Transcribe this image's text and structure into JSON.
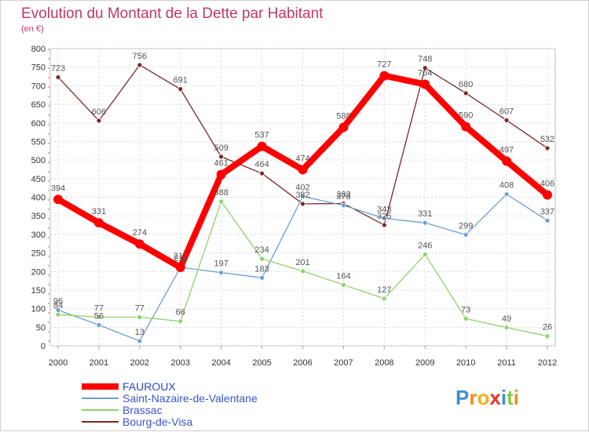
{
  "chart_data": {
    "type": "line",
    "title": "Evolution du Montant de la Dette par Habitant",
    "subtitle": "(en €)",
    "xlabel": "",
    "ylabel": "",
    "ylim": [
      0,
      800
    ],
    "yticks": [
      "0",
      "50",
      "100",
      "150",
      "200",
      "250",
      "300",
      "350",
      "400",
      "450",
      "500",
      "550",
      "600",
      "650",
      "700",
      "750",
      "800"
    ],
    "x": [
      "2000",
      "2001",
      "2002",
      "2003",
      "2004",
      "2005",
      "2006",
      "2007",
      "2008",
      "2009",
      "2010",
      "2011",
      "2012"
    ],
    "grid": true,
    "legend_position": "bottom-left",
    "series": [
      {
        "name": "FAUROUX",
        "color": "#ff0000",
        "values": [
          394,
          331,
          274,
          211,
          461,
          537,
          474,
          588,
          727,
          704,
          590,
          497,
          406
        ]
      },
      {
        "name": "Saint-Nazaire-de-Valentane",
        "color": "#6a9fd1",
        "values": [
          96,
          56,
          13,
          211,
          197,
          183,
          402,
          378,
          343,
          331,
          299,
          408,
          337
        ]
      },
      {
        "name": "Brassac",
        "color": "#8fd26a",
        "values": [
          84,
          77,
          77,
          66,
          388,
          234,
          201,
          164,
          127,
          246,
          73,
          49,
          26
        ]
      },
      {
        "name": "Bourg-de-Visa",
        "color": "#7a2828",
        "values": [
          723,
          606,
          756,
          691,
          509,
          464,
          382,
          383,
          325,
          748,
          680,
          607,
          532
        ]
      }
    ]
  },
  "logo": {
    "letters": [
      "P",
      "r",
      "o",
      "x",
      "i",
      "t",
      "i"
    ]
  }
}
